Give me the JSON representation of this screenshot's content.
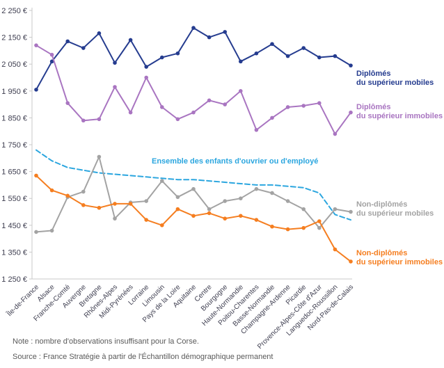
{
  "chart_data": {
    "type": "line",
    "title": "",
    "xlabel": "",
    "ylabel": "",
    "ylim": [
      1250,
      2250
    ],
    "ytick_step": 100,
    "ytick_suffix": " €",
    "grid": false,
    "categories": [
      "Île-de-France",
      "Alsace",
      "Franche-Comté",
      "Auvergne",
      "Bretagne",
      "Rhônes-Alpes",
      "Midi-Pyrénées",
      "Lorraine",
      "Limousin",
      "Pays de la Loire",
      "Aquitaine",
      "Centre",
      "Bourgogne",
      "Haute-Normandie",
      "Poitou-Charentes",
      "Basse-Normandie",
      "Champagne-Ardenne",
      "Picardie",
      "Provence-Alpes-Côte d'Azur",
      "Languedoc-Roussillon",
      "Nord-Pas-de-Calais"
    ],
    "series": [
      {
        "name": "Diplômés du supérieur mobiles",
        "color": "#253c8f",
        "style": "solid",
        "marker": true,
        "values": [
          1955,
          2060,
          2135,
          2110,
          2165,
          2055,
          2140,
          2040,
          2075,
          2090,
          2185,
          2150,
          2170,
          2060,
          2090,
          2125,
          2080,
          2110,
          2075,
          2080,
          2045
        ]
      },
      {
        "name": "Diplômés du supérieur immobiles",
        "color": "#a975c1",
        "style": "solid",
        "marker": true,
        "values": [
          2120,
          2085,
          1905,
          1840,
          1845,
          1965,
          1870,
          2000,
          1890,
          1845,
          1870,
          1915,
          1900,
          1950,
          1805,
          1850,
          1890,
          1895,
          1905,
          1790,
          1870
        ]
      },
      {
        "name": "Ensemble des enfants d'ouvrier ou d'employé",
        "color": "#2ba6df",
        "style": "dashed",
        "marker": false,
        "values": [
          1730,
          1690,
          1665,
          1655,
          1645,
          1640,
          1635,
          1630,
          1625,
          1620,
          1620,
          1615,
          1610,
          1605,
          1600,
          1600,
          1595,
          1590,
          1570,
          1490,
          1470
        ]
      },
      {
        "name": "Non-diplômés du supérieur mobiles",
        "color": "#a3a3a3",
        "style": "solid",
        "marker": true,
        "values": [
          1425,
          1430,
          1555,
          1575,
          1705,
          1475,
          1535,
          1540,
          1615,
          1555,
          1585,
          1510,
          1540,
          1550,
          1585,
          1570,
          1540,
          1510,
          1440,
          1510,
          1500
        ]
      },
      {
        "name": "Non-diplômés du supérieur immobiles",
        "color": "#f57e20",
        "style": "solid",
        "marker": true,
        "values": [
          1635,
          1580,
          1560,
          1525,
          1515,
          1530,
          1530,
          1470,
          1450,
          1510,
          1485,
          1495,
          1475,
          1485,
          1470,
          1445,
          1435,
          1440,
          1465,
          1360,
          1315
        ]
      }
    ],
    "legend_position": "right-inline"
  },
  "legend": {
    "dip_mobiles": {
      "line1": "Diplômés",
      "line2": "du supérieur mobiles",
      "color": "#253c8f"
    },
    "dip_immobiles": {
      "line1": "Diplômés",
      "line2": "du supérieur immobiles",
      "color": "#a975c1"
    },
    "ensemble": {
      "text": "Ensemble des enfants d'ouvrier ou d'employé",
      "color": "#2ba6df"
    },
    "nondip_mobiles": {
      "line1": "Non-diplômés",
      "line2": "du supérieur mobiles",
      "color": "#a3a3a3"
    },
    "nondip_immobiles": {
      "line1": "Non-diplômés",
      "line2": "du supérieur immobiles",
      "color": "#f57e20"
    }
  },
  "notes": {
    "note": "Note : nombre d'observations insuffisant pour la Corse.",
    "source": "Source : France Stratégie à partir de l'Échantillon démographique permanent"
  }
}
